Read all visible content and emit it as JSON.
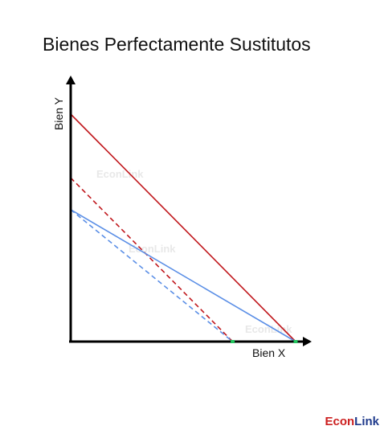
{
  "title": "Bienes Perfectamente Sustitutos",
  "axes": {
    "y_label": "Bien Y",
    "x_label": "Bien X"
  },
  "watermark": "EconLink",
  "brand": {
    "part1": "Econ",
    "part2": "Link"
  },
  "colors": {
    "axis": "#000000",
    "budget_line": "#c0171c",
    "indifference_curve": "#5b8fe6",
    "intercept_marker": "#22c55e"
  },
  "diagram": {
    "type": "perfect-substitutes",
    "lines": [
      {
        "id": "budget-initial",
        "style": "solid",
        "color": "#c0171c",
        "y_intercept": 100,
        "x_intercept": 100
      },
      {
        "id": "budget-new",
        "style": "dashed",
        "color": "#c0171c",
        "y_intercept": 72,
        "x_intercept": 72
      },
      {
        "id": "indifference-initial",
        "style": "solid",
        "color": "#5b8fe6",
        "y_intercept": 58,
        "x_intercept": 100
      },
      {
        "id": "indifference-new",
        "style": "dashed",
        "color": "#5b8fe6",
        "y_intercept": 58,
        "x_intercept": 72
      }
    ],
    "markers": [
      {
        "id": "x-intercept-new",
        "x": 72
      },
      {
        "id": "x-intercept-initial",
        "x": 100
      }
    ]
  }
}
